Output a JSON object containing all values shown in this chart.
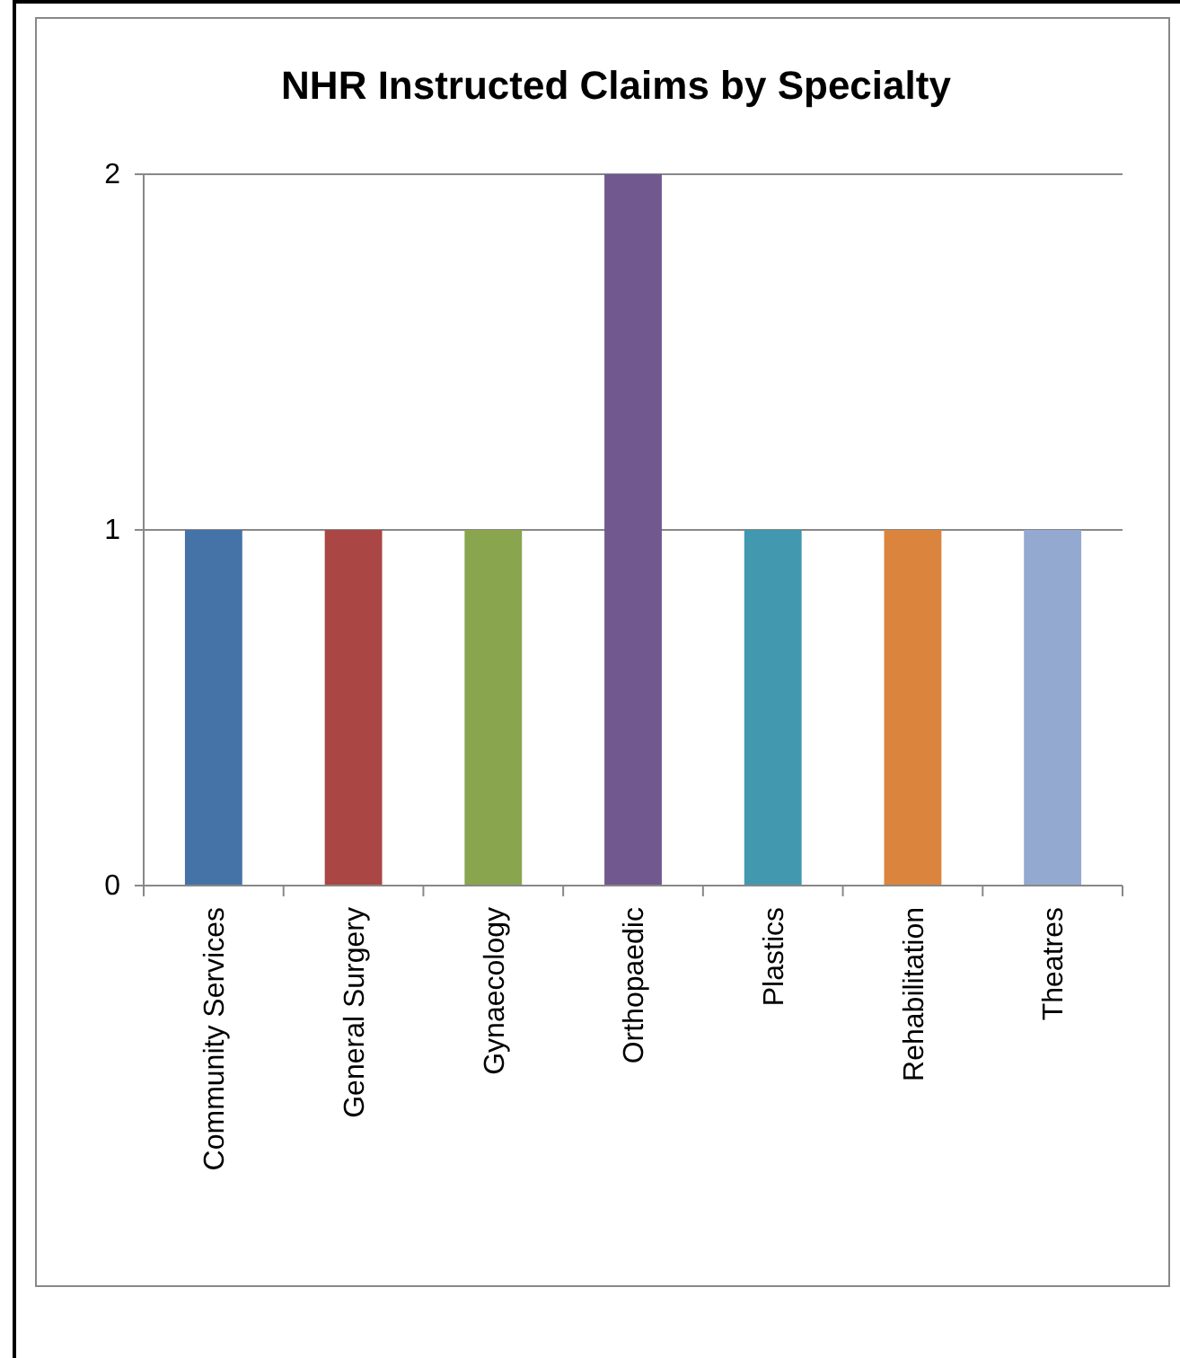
{
  "chart_data": {
    "type": "bar",
    "title": "NHR Instructed Claims by Specialty",
    "categories": [
      "Community Services",
      "General Surgery",
      "Gynaecology",
      "Orthopaedic",
      "Plastics",
      "Rehabilitation",
      "Theatres"
    ],
    "values": [
      1,
      1,
      1,
      2,
      1,
      1,
      1
    ],
    "colors": [
      "#4572a7",
      "#aa4643",
      "#89a54e",
      "#71588f",
      "#4198af",
      "#db843d",
      "#93a9cf"
    ],
    "ylim": [
      0,
      2
    ],
    "yticks": [
      0,
      1,
      2
    ],
    "grid": "y"
  }
}
